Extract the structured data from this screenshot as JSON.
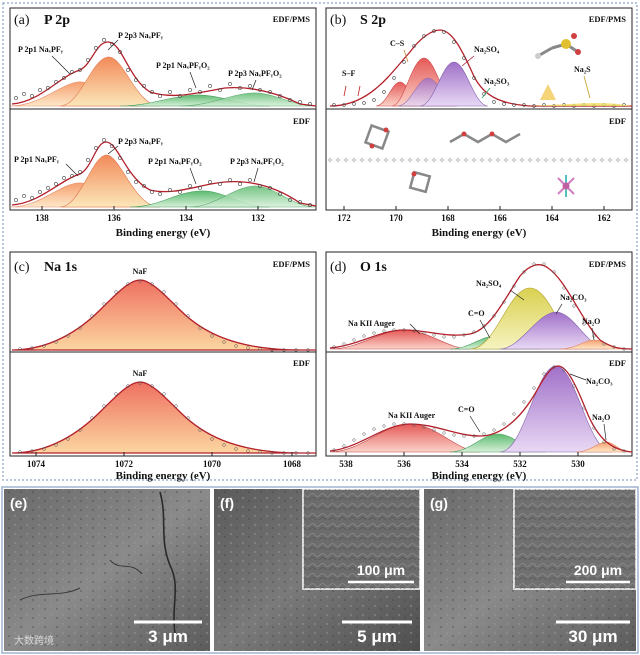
{
  "panels": {
    "a": {
      "label": "(a)",
      "title": "P 2p",
      "top_condition": "EDF/PMS",
      "bottom_condition": "EDF",
      "xlabel": "Binding energy (eV)",
      "ticks": [
        "138",
        "136",
        "134",
        "132"
      ],
      "top_annotations": [
        "P 2p1 NaₓPFᵧ",
        "P 2p3 NaₓPFᵧ",
        "P 2p1 NaₓPFᵧO₂",
        "P 2p3 NaₓPFᵧO₂"
      ],
      "bottom_annotations": [
        "P 2p1 NaₓPFᵧ",
        "P 2p3 NaₓPFᵧ",
        "P 2p1 NaₓPFᵧO₂",
        "P 2p3 NaₓPFᵧO₂"
      ]
    },
    "b": {
      "label": "(b)",
      "title": "S 2p",
      "top_condition": "EDF/PMS",
      "bottom_condition": "EDF",
      "xlabel": "Binding energy (eV)",
      "ticks": [
        "172",
        "170",
        "168",
        "166",
        "164",
        "162"
      ],
      "top_annotations": [
        "S–F",
        "C–S",
        "Na₂SO₄",
        "Na₂SO₃",
        "Na₂S"
      ]
    },
    "c": {
      "label": "(c)",
      "title": "Na 1s",
      "top_condition": "EDF/PMS",
      "bottom_condition": "EDF",
      "xlabel": "Binding energy (eV)",
      "ticks": [
        "1074",
        "1072",
        "1070",
        "1068"
      ],
      "top_annotations": [
        "NaF"
      ],
      "bottom_annotations": [
        "NaF"
      ]
    },
    "d": {
      "label": "(d)",
      "title": "O 1s",
      "top_condition": "EDF/PMS",
      "bottom_condition": "EDF",
      "xlabel": "Binding energy (eV)",
      "ticks": [
        "538",
        "536",
        "534",
        "532",
        "530"
      ],
      "top_annotations": [
        "Na₂SO₄",
        "Na KII Auger",
        "C=O",
        "Na₂CO₃",
        "Na₂O"
      ],
      "bottom_annotations": [
        "Na₂CO₃",
        "Na KII Auger",
        "C=O",
        "Na₂O"
      ]
    },
    "e": {
      "label": "(e)",
      "scale_bar": "3 μm"
    },
    "f": {
      "label": "(f)",
      "scale_bar": "5 μm",
      "inset_scale_bar": "100 μm"
    },
    "g": {
      "label": "(g)",
      "scale_bar": "30 μm",
      "inset_scale_bar": "200 μm"
    }
  },
  "watermark": "大数跨境"
}
